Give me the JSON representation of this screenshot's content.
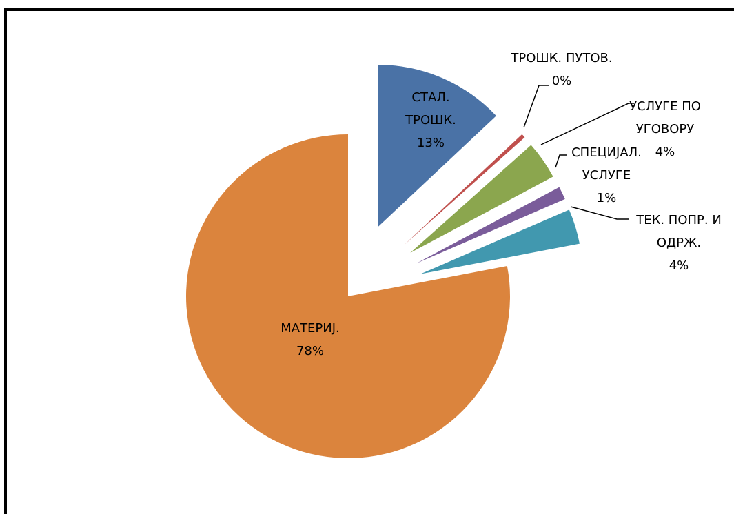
{
  "chart_data": {
    "type": "pie",
    "categories": [
      "СТАЛ. ТРОШК.",
      "ТРОШК. ПУТОВ.",
      "УСЛУГЕ ПО УГОВОРУ",
      "СПЕЦИЈАЛ. УСЛУГЕ",
      "ТЕК. ПОПР. И ОДРЖ.",
      "МАТЕРИЈ."
    ],
    "values": [
      13,
      0.4,
      3.8,
      1.3,
      3.5,
      78
    ],
    "value_labels": [
      "13%",
      "0%",
      "4%",
      "1%",
      "4%",
      "78%"
    ],
    "colors": [
      "#4a72a6",
      "#c0504d",
      "#8ba64e",
      "#7a5c9a",
      "#4198af",
      "#db843d"
    ]
  }
}
